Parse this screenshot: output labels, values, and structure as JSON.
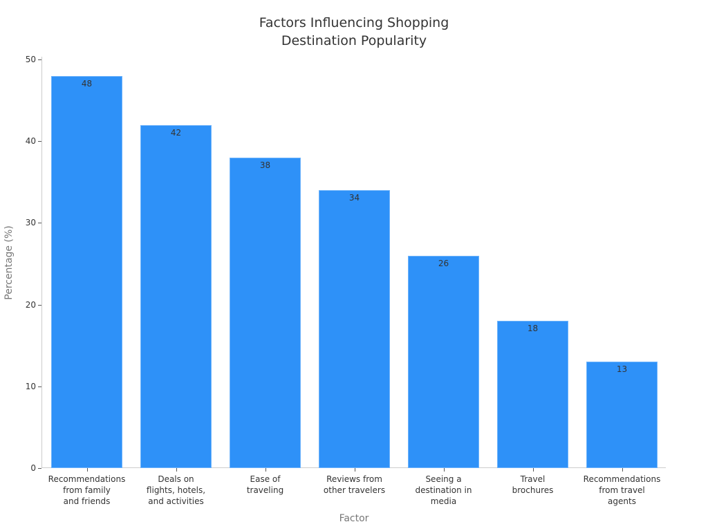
{
  "chart_data": {
    "type": "bar",
    "title": "Factors Influencing Shopping\nDestination Popularity",
    "xlabel": "Factor",
    "ylabel": "Percentage (%)",
    "ylim": [
      0,
      50
    ],
    "yticks": [
      0,
      10,
      20,
      30,
      40,
      50
    ],
    "grid": false,
    "legend": null,
    "bar_color": "#2e91f8",
    "categories": [
      "Recommendations\nfrom family\nand friends",
      "Deals on\nflights, hotels,\nand activities",
      "Ease of\ntraveling",
      "Reviews from\nother travelers",
      "Seeing a\ndestination in\nmedia",
      "Travel\nbrochures",
      "Recommendations\nfrom travel\nagents"
    ],
    "values": [
      48,
      42,
      38,
      34,
      26,
      18,
      13
    ],
    "data_labels": [
      "48",
      "42",
      "38",
      "34",
      "26",
      "18",
      "13"
    ]
  }
}
